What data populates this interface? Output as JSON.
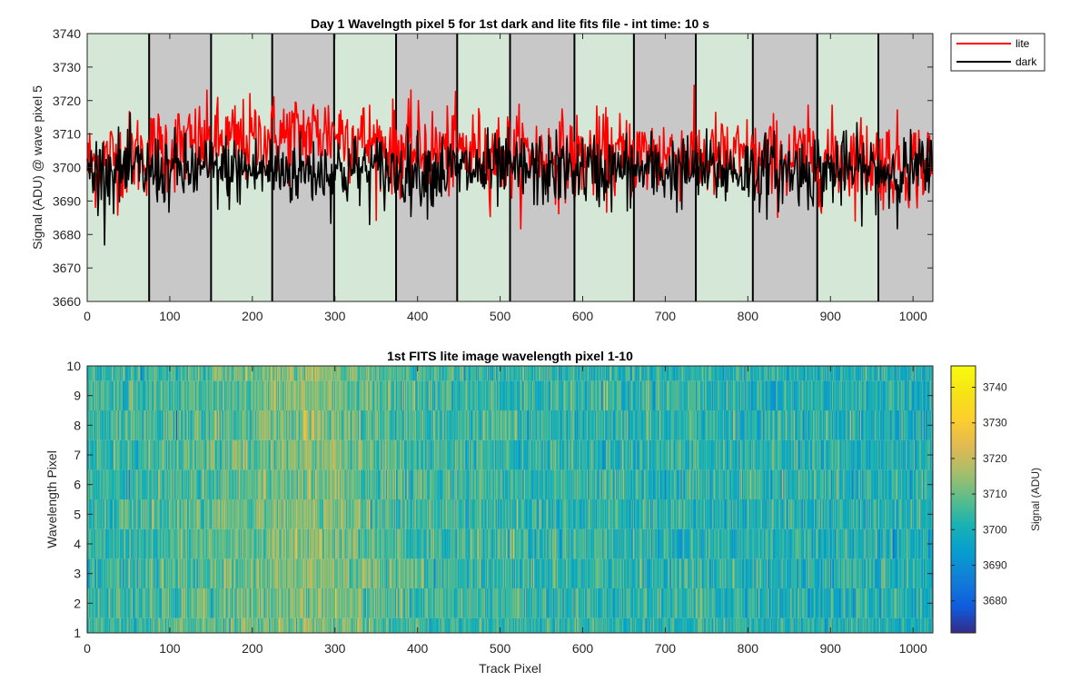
{
  "chart_data": [
    {
      "type": "line",
      "title": "Day 1 Wavelngth pixel 5 for 1st dark and lite fits file - int time: 10 s",
      "xlabel": "",
      "ylabel": "Signal (ADU) @ wave pixel 5",
      "xlim": [
        0,
        1024
      ],
      "ylim": [
        3660,
        3740
      ],
      "xticks": [
        0,
        100,
        200,
        300,
        400,
        500,
        600,
        700,
        800,
        900,
        1000
      ],
      "yticks": [
        3660,
        3670,
        3680,
        3690,
        3700,
        3710,
        3720,
        3730,
        3740
      ],
      "legend_position": "outside-top-right",
      "background_bands": {
        "boundaries": [
          0,
          75,
          150,
          224,
          299,
          374,
          448,
          512,
          590,
          662,
          737,
          806,
          884,
          958,
          1024
        ],
        "colors": [
          "#d5e8d7",
          "#c8c8c8"
        ],
        "pattern": "alternating starting with green"
      },
      "series": [
        {
          "name": "lite",
          "color": "#ff0000",
          "profile": {
            "x": [
              0,
              100,
              150,
              200,
              260,
              300,
              360,
              420,
              500,
              600,
              700,
              800,
              900,
              1024
            ],
            "mean": [
              3701,
              3706,
              3707,
              3708,
              3710,
              3711,
              3706,
              3705,
              3704,
              3703,
              3704,
              3702,
              3703,
              3701
            ]
          },
          "range_approx": [
            3676,
            3736
          ],
          "noise_std": 6.5
        },
        {
          "name": "dark",
          "color": "#000000",
          "profile": {
            "x": [
              0,
              1024
            ],
            "mean": [
              3699,
              3699
            ]
          },
          "range_approx": [
            3676,
            3723
          ],
          "noise_std": 5.5
        }
      ]
    },
    {
      "type": "heatmap",
      "title": "1st FITS lite image wavelength pixel 1-10",
      "xlabel": "Track Pixel",
      "ylabel": "Wavelength Pixel",
      "xlim": [
        0,
        1024
      ],
      "ylim": [
        1,
        10
      ],
      "xticks": [
        0,
        100,
        200,
        300,
        400,
        500,
        600,
        700,
        800,
        900,
        1000
      ],
      "yticks": [
        1,
        2,
        3,
        4,
        5,
        6,
        7,
        8,
        9,
        10
      ],
      "rows": 10,
      "columns": 1024,
      "colormap": "parula",
      "colorbar": {
        "label": "Signal (ADU)",
        "range": [
          3671,
          3746
        ],
        "ticks": [
          3680,
          3690,
          3700,
          3710,
          3720,
          3730,
          3740
        ]
      },
      "value_profile": {
        "x": [
          0,
          100,
          150,
          200,
          260,
          300,
          360,
          420,
          500,
          600,
          700,
          800,
          900,
          1024
        ],
        "mean": [
          3703,
          3706,
          3708,
          3710,
          3713,
          3712,
          3707,
          3705,
          3704,
          3703,
          3703,
          3702,
          3702,
          3701
        ]
      },
      "noise_std": 6.5
    }
  ]
}
